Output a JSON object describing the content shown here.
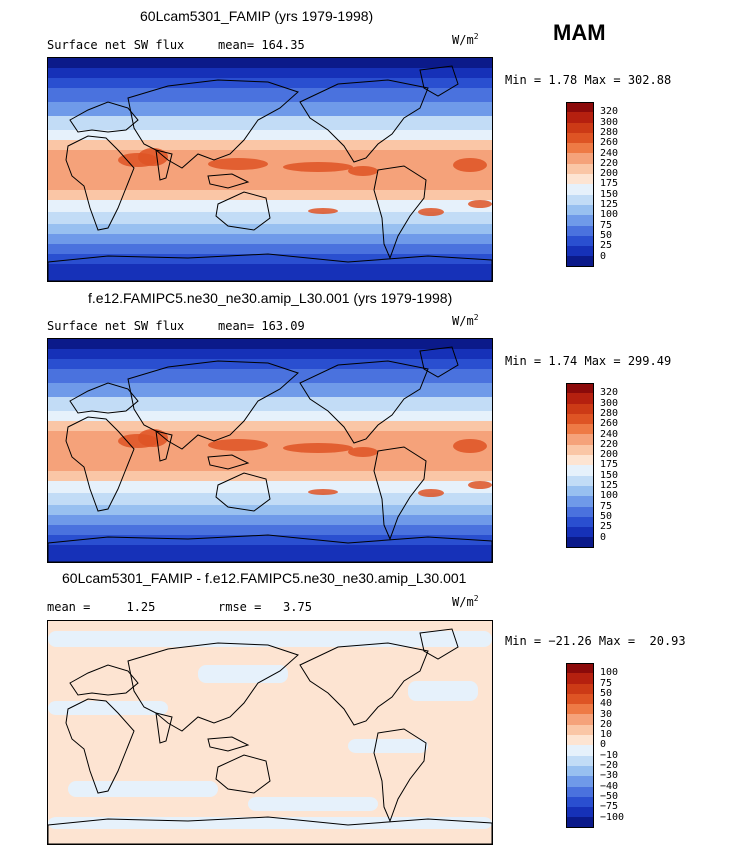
{
  "season": "MAM",
  "panels": [
    {
      "title": "60Lcam5301_FAMIP (yrs 1979-1998)",
      "left_label": "Surface net SW flux",
      "stat_label": "mean=",
      "stat_value": "164.35",
      "units_base": "W/m",
      "units_exp": "2",
      "minmax_label": "Min =    1.78 Max = 302.88",
      "map_kind": "field"
    },
    {
      "title": "f.e12.FAMIPC5.ne30_ne30.amip_L30.001 (yrs 1979-1998)",
      "left_label": "Surface net SW flux",
      "stat_label": "mean=",
      "stat_value": "163.09",
      "units_base": "W/m",
      "units_exp": "2",
      "minmax_label": "Min =    1.74 Max = 299.49",
      "map_kind": "field"
    },
    {
      "title": "60Lcam5301_FAMIP - f.e12.FAMIPC5.ne30_ne30.amip_L30.001",
      "left_label": "mean =     1.25",
      "stat_label": "rmse =",
      "stat_value": "3.75",
      "units_base": "W/m",
      "units_exp": "2",
      "minmax_label": "Min = −21.26 Max =  20.93",
      "map_kind": "diff"
    }
  ],
  "colorbars": {
    "field": {
      "labels": [
        "320",
        "300",
        "280",
        "260",
        "240",
        "220",
        "200",
        "175",
        "150",
        "125",
        "100",
        "75",
        "50",
        "25",
        "0"
      ],
      "colors": [
        "#8b0a0a",
        "#b5200f",
        "#cc3a16",
        "#de5424",
        "#ee7a45",
        "#f5a27a",
        "#fac6a6",
        "#fde4d2",
        "#e6f1fb",
        "#c2dcf6",
        "#98c0f0",
        "#6f9ae9",
        "#4a72de",
        "#2a4fd0",
        "#1631b8",
        "#0b1a8a"
      ]
    },
    "diff": {
      "labels": [
        "100",
        "75",
        "50",
        "40",
        "30",
        "20",
        "10",
        "0",
        "−10",
        "−20",
        "−30",
        "−40",
        "−50",
        "−75",
        "−100"
      ],
      "colors": [
        "#8b0a0a",
        "#b5200f",
        "#cc3a16",
        "#de5424",
        "#ee7a45",
        "#f5a27a",
        "#fac6a6",
        "#fde4d2",
        "#e6f1fb",
        "#c2dcf6",
        "#98c0f0",
        "#6f9ae9",
        "#4a72de",
        "#2a4fd0",
        "#1631b8",
        "#0b1a8a"
      ]
    }
  }
}
